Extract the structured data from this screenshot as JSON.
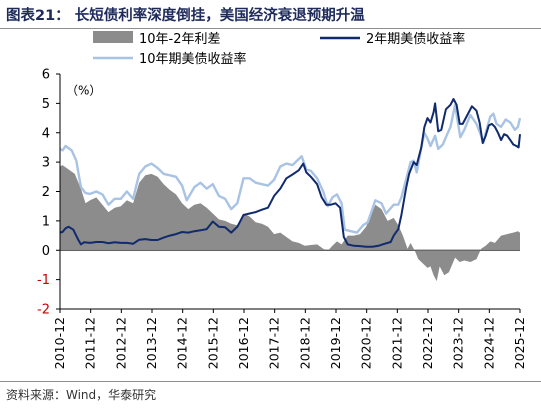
{
  "header": {
    "title": "图表21：  长短债利率深度倒挂，美国经济衰退预期升温"
  },
  "footer": {
    "source": "资料来源：Wind，华泰研究"
  },
  "colors": {
    "spread": "#8c8c8c",
    "y2": "#102a6e",
    "y10": "#a9c3e4",
    "negative_tick": "#cc0000"
  },
  "chart_data": {
    "type": "line",
    "unit_label": "（%）",
    "ylim": [
      -2,
      6
    ],
    "yticks": [
      "6",
      "5",
      "4",
      "3",
      "2",
      "1",
      "0",
      "-1",
      "-2"
    ],
    "xlim": [
      2010.917,
      2025.917
    ],
    "x_categories": [
      "2010-12",
      "2011-12",
      "2012-12",
      "2013-12",
      "2014-12",
      "2015-12",
      "2016-12",
      "2017-12",
      "2018-12",
      "2019-12",
      "2020-12",
      "2021-12",
      "2022-12",
      "2023-12",
      "2024-12",
      "2025-12"
    ],
    "legend": [
      {
        "name": "10年-2年利差",
        "style": "area",
        "color": "#8c8c8c"
      },
      {
        "name": "2年期美债收益率",
        "style": "line",
        "color": "#102a6e"
      },
      {
        "name": "10年期美债收益率",
        "style": "line",
        "color": "#a9c3e4"
      }
    ],
    "series": [
      {
        "name": "10年-2年利差",
        "style": "area",
        "points": [
          [
            2010.917,
            2.85
          ],
          [
            2011.0,
            2.9
          ],
          [
            2011.2,
            2.75
          ],
          [
            2011.4,
            2.6
          ],
          [
            2011.6,
            2.1
          ],
          [
            2011.75,
            1.6
          ],
          [
            2011.9,
            1.7
          ],
          [
            2012.1,
            1.8
          ],
          [
            2012.3,
            1.55
          ],
          [
            2012.5,
            1.3
          ],
          [
            2012.7,
            1.45
          ],
          [
            2012.9,
            1.5
          ],
          [
            2013.1,
            1.7
          ],
          [
            2013.3,
            1.6
          ],
          [
            2013.5,
            2.3
          ],
          [
            2013.7,
            2.55
          ],
          [
            2013.9,
            2.6
          ],
          [
            2014.1,
            2.5
          ],
          [
            2014.3,
            2.25
          ],
          [
            2014.5,
            2.05
          ],
          [
            2014.7,
            1.9
          ],
          [
            2014.9,
            1.6
          ],
          [
            2015.1,
            1.4
          ],
          [
            2015.3,
            1.55
          ],
          [
            2015.5,
            1.6
          ],
          [
            2015.7,
            1.45
          ],
          [
            2015.9,
            1.25
          ],
          [
            2016.1,
            1.05
          ],
          [
            2016.3,
            1.0
          ],
          [
            2016.5,
            0.9
          ],
          [
            2016.7,
            0.85
          ],
          [
            2016.9,
            1.25
          ],
          [
            2017.1,
            1.15
          ],
          [
            2017.3,
            0.95
          ],
          [
            2017.5,
            0.9
          ],
          [
            2017.7,
            0.8
          ],
          [
            2017.9,
            0.55
          ],
          [
            2018.1,
            0.6
          ],
          [
            2018.3,
            0.45
          ],
          [
            2018.5,
            0.3
          ],
          [
            2018.7,
            0.25
          ],
          [
            2018.9,
            0.15
          ],
          [
            2019.1,
            0.18
          ],
          [
            2019.3,
            0.2
          ],
          [
            2019.5,
            0.05
          ],
          [
            2019.65,
            -0.02
          ],
          [
            2019.8,
            0.15
          ],
          [
            2019.95,
            0.3
          ],
          [
            2020.1,
            0.2
          ],
          [
            2020.3,
            0.5
          ],
          [
            2020.5,
            0.5
          ],
          [
            2020.7,
            0.55
          ],
          [
            2020.9,
            0.8
          ],
          [
            2021.1,
            1.3
          ],
          [
            2021.2,
            1.55
          ],
          [
            2021.4,
            1.4
          ],
          [
            2021.6,
            1.0
          ],
          [
            2021.8,
            1.1
          ],
          [
            2021.95,
            0.85
          ],
          [
            2022.1,
            0.5
          ],
          [
            2022.25,
            0.05
          ],
          [
            2022.35,
            0.25
          ],
          [
            2022.5,
            -0.05
          ],
          [
            2022.6,
            -0.3
          ],
          [
            2022.75,
            -0.45
          ],
          [
            2022.9,
            -0.6
          ],
          [
            2023.0,
            -0.55
          ],
          [
            2023.1,
            -0.85
          ],
          [
            2023.2,
            -1.05
          ],
          [
            2023.3,
            -0.55
          ],
          [
            2023.45,
            -0.85
          ],
          [
            2023.6,
            -0.75
          ],
          [
            2023.8,
            -0.25
          ],
          [
            2023.95,
            -0.4
          ],
          [
            2024.1,
            -0.35
          ],
          [
            2024.3,
            -0.4
          ],
          [
            2024.5,
            -0.3
          ],
          [
            2024.65,
            0.05
          ],
          [
            2024.8,
            0.15
          ],
          [
            2024.95,
            0.3
          ],
          [
            2025.1,
            0.25
          ],
          [
            2025.3,
            0.5
          ],
          [
            2025.5,
            0.55
          ],
          [
            2025.7,
            0.6
          ],
          [
            2025.85,
            0.65
          ],
          [
            2025.917,
            0.6
          ]
        ]
      },
      {
        "name": "2年期美债收益率",
        "style": "line",
        "points": [
          [
            2010.917,
            0.6
          ],
          [
            2011.0,
            0.62
          ],
          [
            2011.1,
            0.75
          ],
          [
            2011.2,
            0.8
          ],
          [
            2011.35,
            0.7
          ],
          [
            2011.5,
            0.38
          ],
          [
            2011.6,
            0.2
          ],
          [
            2011.7,
            0.27
          ],
          [
            2011.9,
            0.25
          ],
          [
            2012.1,
            0.28
          ],
          [
            2012.3,
            0.28
          ],
          [
            2012.5,
            0.24
          ],
          [
            2012.7,
            0.27
          ],
          [
            2012.9,
            0.25
          ],
          [
            2013.1,
            0.25
          ],
          [
            2013.3,
            0.22
          ],
          [
            2013.5,
            0.36
          ],
          [
            2013.7,
            0.38
          ],
          [
            2013.9,
            0.35
          ],
          [
            2014.1,
            0.35
          ],
          [
            2014.3,
            0.43
          ],
          [
            2014.5,
            0.5
          ],
          [
            2014.7,
            0.55
          ],
          [
            2014.9,
            0.62
          ],
          [
            2015.1,
            0.6
          ],
          [
            2015.3,
            0.65
          ],
          [
            2015.5,
            0.68
          ],
          [
            2015.7,
            0.72
          ],
          [
            2015.9,
            0.98
          ],
          [
            2016.1,
            0.8
          ],
          [
            2016.3,
            0.78
          ],
          [
            2016.5,
            0.6
          ],
          [
            2016.7,
            0.8
          ],
          [
            2016.9,
            1.2
          ],
          [
            2017.1,
            1.25
          ],
          [
            2017.3,
            1.3
          ],
          [
            2017.5,
            1.38
          ],
          [
            2017.7,
            1.45
          ],
          [
            2017.9,
            1.85
          ],
          [
            2018.1,
            2.1
          ],
          [
            2018.3,
            2.45
          ],
          [
            2018.5,
            2.58
          ],
          [
            2018.7,
            2.72
          ],
          [
            2018.85,
            2.95
          ],
          [
            2018.95,
            2.65
          ],
          [
            2019.1,
            2.5
          ],
          [
            2019.3,
            2.25
          ],
          [
            2019.45,
            1.8
          ],
          [
            2019.6,
            1.55
          ],
          [
            2019.75,
            1.55
          ],
          [
            2019.9,
            1.6
          ],
          [
            2020.05,
            1.45
          ],
          [
            2020.17,
            0.45
          ],
          [
            2020.3,
            0.2
          ],
          [
            2020.5,
            0.15
          ],
          [
            2020.7,
            0.14
          ],
          [
            2020.9,
            0.12
          ],
          [
            2021.1,
            0.12
          ],
          [
            2021.3,
            0.15
          ],
          [
            2021.5,
            0.22
          ],
          [
            2021.7,
            0.28
          ],
          [
            2021.8,
            0.5
          ],
          [
            2021.95,
            0.72
          ],
          [
            2022.05,
            1.2
          ],
          [
            2022.2,
            2.1
          ],
          [
            2022.3,
            2.6
          ],
          [
            2022.45,
            3.0
          ],
          [
            2022.55,
            2.9
          ],
          [
            2022.7,
            3.5
          ],
          [
            2022.8,
            4.2
          ],
          [
            2022.9,
            4.5
          ],
          [
            2023.0,
            4.35
          ],
          [
            2023.1,
            4.7
          ],
          [
            2023.15,
            5.0
          ],
          [
            2023.25,
            4.05
          ],
          [
            2023.35,
            4.1
          ],
          [
            2023.5,
            4.8
          ],
          [
            2023.65,
            4.95
          ],
          [
            2023.75,
            5.15
          ],
          [
            2023.85,
            4.95
          ],
          [
            2023.95,
            4.3
          ],
          [
            2024.05,
            4.3
          ],
          [
            2024.2,
            4.6
          ],
          [
            2024.35,
            4.9
          ],
          [
            2024.5,
            4.75
          ],
          [
            2024.6,
            4.35
          ],
          [
            2024.7,
            3.65
          ],
          [
            2024.8,
            3.9
          ],
          [
            2024.9,
            4.25
          ],
          [
            2025.0,
            4.3
          ],
          [
            2025.1,
            4.2
          ],
          [
            2025.2,
            4.0
          ],
          [
            2025.3,
            3.75
          ],
          [
            2025.4,
            3.95
          ],
          [
            2025.5,
            3.9
          ],
          [
            2025.6,
            3.75
          ],
          [
            2025.7,
            3.6
          ],
          [
            2025.8,
            3.55
          ],
          [
            2025.87,
            3.5
          ],
          [
            2025.917,
            3.95
          ]
        ]
      },
      {
        "name": "10年期美债收益率",
        "style": "line",
        "points": [
          [
            2010.917,
            3.45
          ],
          [
            2011.0,
            3.4
          ],
          [
            2011.1,
            3.55
          ],
          [
            2011.3,
            3.4
          ],
          [
            2011.45,
            3.05
          ],
          [
            2011.6,
            2.15
          ],
          [
            2011.75,
            1.95
          ],
          [
            2011.9,
            1.92
          ],
          [
            2012.1,
            2.0
          ],
          [
            2012.3,
            1.9
          ],
          [
            2012.5,
            1.55
          ],
          [
            2012.7,
            1.75
          ],
          [
            2012.9,
            1.75
          ],
          [
            2013.1,
            2.0
          ],
          [
            2013.3,
            1.75
          ],
          [
            2013.5,
            2.6
          ],
          [
            2013.7,
            2.85
          ],
          [
            2013.9,
            2.95
          ],
          [
            2014.1,
            2.8
          ],
          [
            2014.3,
            2.6
          ],
          [
            2014.5,
            2.55
          ],
          [
            2014.7,
            2.5
          ],
          [
            2014.9,
            2.2
          ],
          [
            2015.05,
            1.7
          ],
          [
            2015.3,
            2.15
          ],
          [
            2015.5,
            2.3
          ],
          [
            2015.7,
            2.1
          ],
          [
            2015.9,
            2.25
          ],
          [
            2016.1,
            1.85
          ],
          [
            2016.3,
            1.75
          ],
          [
            2016.5,
            1.4
          ],
          [
            2016.7,
            1.6
          ],
          [
            2016.9,
            2.45
          ],
          [
            2017.1,
            2.45
          ],
          [
            2017.3,
            2.3
          ],
          [
            2017.5,
            2.25
          ],
          [
            2017.7,
            2.2
          ],
          [
            2017.9,
            2.4
          ],
          [
            2018.1,
            2.85
          ],
          [
            2018.3,
            2.95
          ],
          [
            2018.5,
            2.9
          ],
          [
            2018.8,
            3.2
          ],
          [
            2018.95,
            2.75
          ],
          [
            2019.1,
            2.7
          ],
          [
            2019.3,
            2.45
          ],
          [
            2019.5,
            2.0
          ],
          [
            2019.65,
            1.5
          ],
          [
            2019.8,
            1.8
          ],
          [
            2019.95,
            1.9
          ],
          [
            2020.1,
            1.6
          ],
          [
            2020.2,
            0.7
          ],
          [
            2020.4,
            0.65
          ],
          [
            2020.6,
            0.6
          ],
          [
            2020.8,
            0.85
          ],
          [
            2020.95,
            0.95
          ],
          [
            2021.1,
            1.4
          ],
          [
            2021.2,
            1.7
          ],
          [
            2021.4,
            1.6
          ],
          [
            2021.55,
            1.25
          ],
          [
            2021.8,
            1.55
          ],
          [
            2021.95,
            1.55
          ],
          [
            2022.05,
            1.8
          ],
          [
            2022.2,
            2.4
          ],
          [
            2022.35,
            3.0
          ],
          [
            2022.45,
            3.05
          ],
          [
            2022.55,
            2.65
          ],
          [
            2022.7,
            3.5
          ],
          [
            2022.8,
            4.0
          ],
          [
            2022.9,
            3.8
          ],
          [
            2023.0,
            3.55
          ],
          [
            2023.15,
            3.9
          ],
          [
            2023.25,
            3.45
          ],
          [
            2023.4,
            3.6
          ],
          [
            2023.5,
            3.85
          ],
          [
            2023.65,
            4.2
          ],
          [
            2023.8,
            4.95
          ],
          [
            2023.9,
            4.3
          ],
          [
            2023.97,
            3.85
          ],
          [
            2024.1,
            4.1
          ],
          [
            2024.3,
            4.6
          ],
          [
            2024.5,
            4.3
          ],
          [
            2024.65,
            3.9
          ],
          [
            2024.72,
            3.65
          ],
          [
            2024.85,
            4.2
          ],
          [
            2024.95,
            4.55
          ],
          [
            2025.05,
            4.65
          ],
          [
            2025.15,
            4.3
          ],
          [
            2025.3,
            4.2
          ],
          [
            2025.45,
            4.45
          ],
          [
            2025.6,
            4.35
          ],
          [
            2025.75,
            4.1
          ],
          [
            2025.85,
            4.2
          ],
          [
            2025.917,
            4.5
          ]
        ]
      }
    ]
  }
}
